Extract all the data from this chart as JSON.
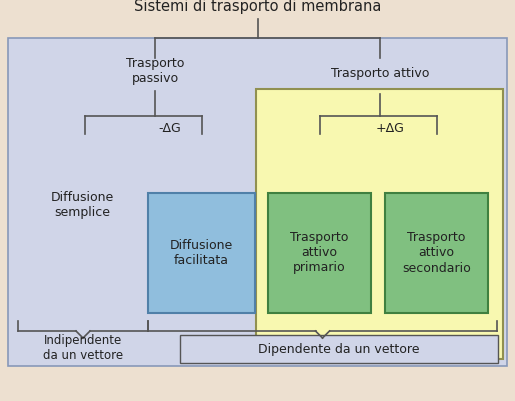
{
  "title": "Sistemi di trasporto di membrana",
  "bg_outer": "#ede0d0",
  "bg_inner": "#d0d5e8",
  "yellow_box_color": "#f8f8b0",
  "yellow_box_edge": "#909050",
  "blue_box_color": "#90bedd",
  "blue_box_edge": "#5080a8",
  "green_box_color": "#80c080",
  "green_box_edge": "#408040",
  "text_color": "#222222",
  "line_color": "#555555",
  "labels": {
    "trasporto_passivo": "Trasporto\npassivo",
    "trasporto_attivo": "Trasporto attivo",
    "neg_dg": "-ΔG",
    "pos_dg": "+ΔG",
    "diffusione_semplice": "Diffusione\nsemplice",
    "diffusione_facilitata": "Diffusione\nfacilitata",
    "trasporto_attivo_primario": "Trasporto\nattivo\nprimario",
    "trasporto_attivo_secondario": "Trasporto\nattivo\nsecondario",
    "indipendente": "Indipendente\nda un vettore",
    "dipendente": "Dipendente da un vettore"
  }
}
